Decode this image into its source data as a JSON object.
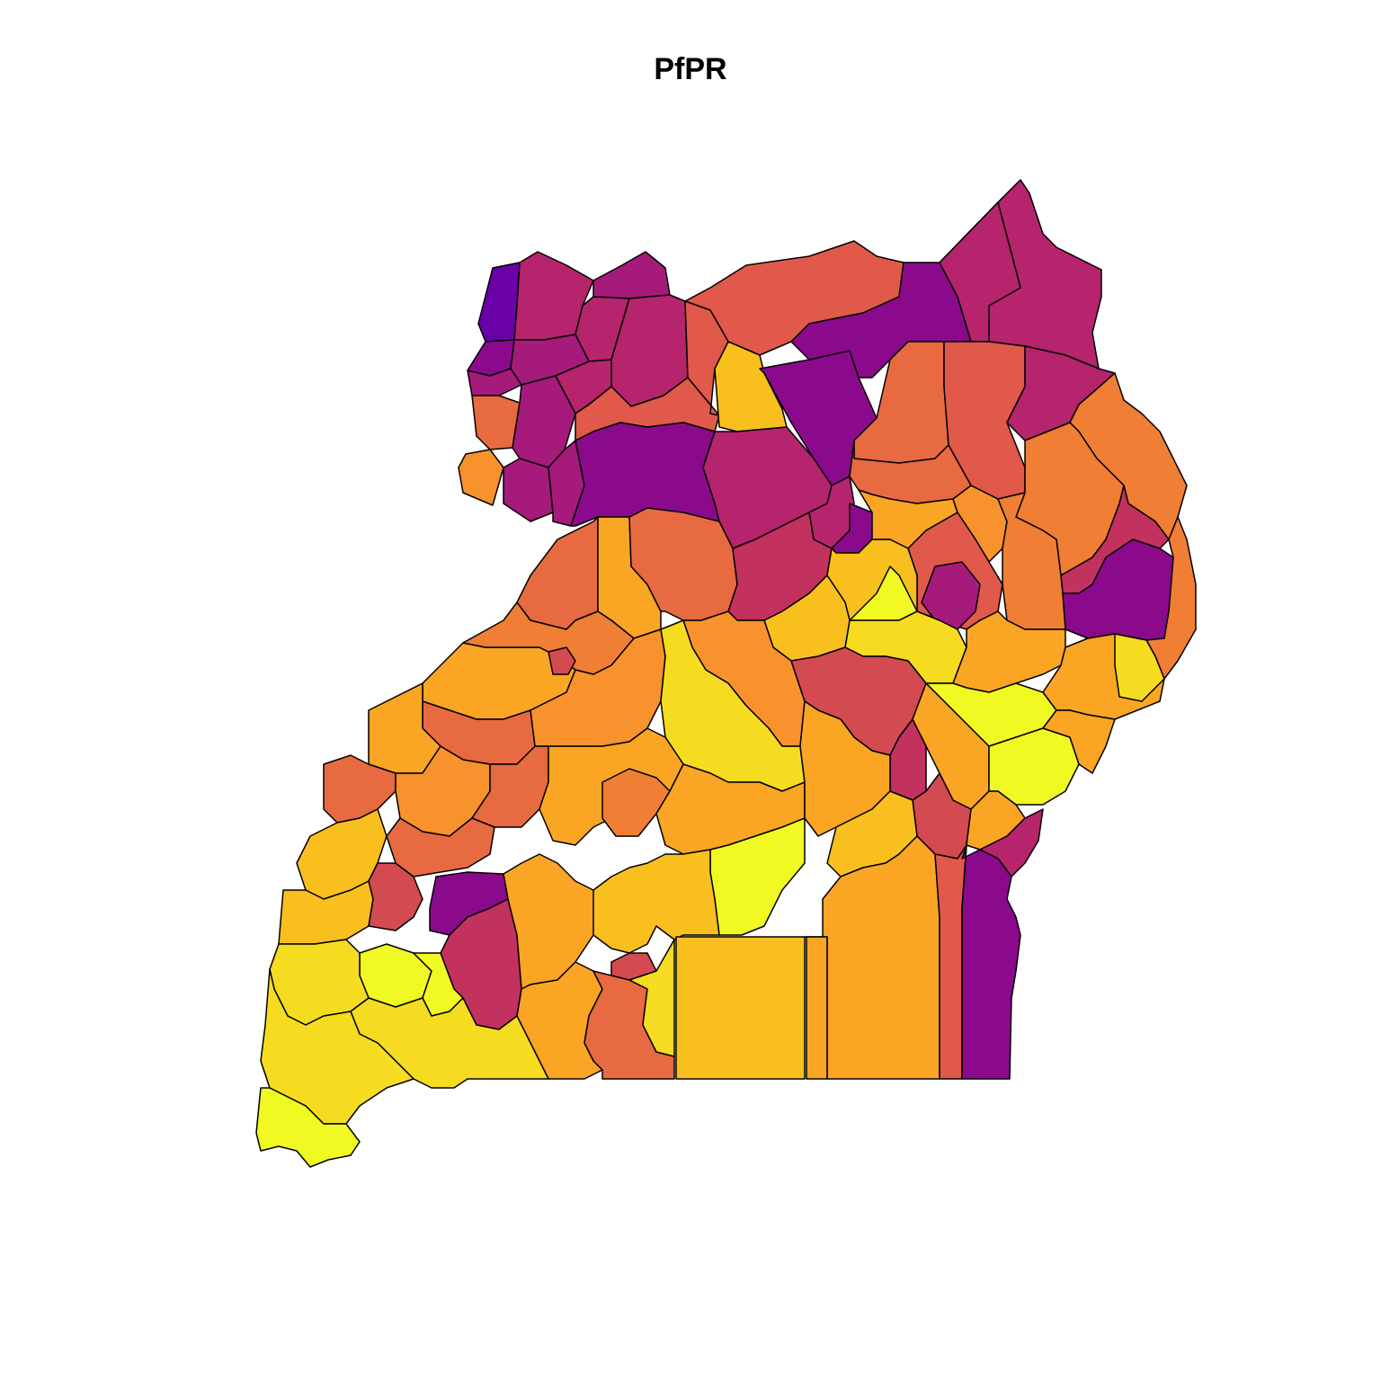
{
  "title": "PfPR",
  "palette": {
    "p1": "#6a00a8",
    "p2": "#8b0a8c",
    "p3": "#a61a7c",
    "p4": "#b5246c",
    "p5": "#c3315f",
    "p6": "#d44a51",
    "p7": "#e0594a",
    "p8": "#e86a40",
    "p9": "#f07e34",
    "p10": "#f7922c",
    "p11": "#faa523",
    "p12": "#f9bf1f",
    "p13": "#f5dc20",
    "p14": "#f0f921"
  }
}
